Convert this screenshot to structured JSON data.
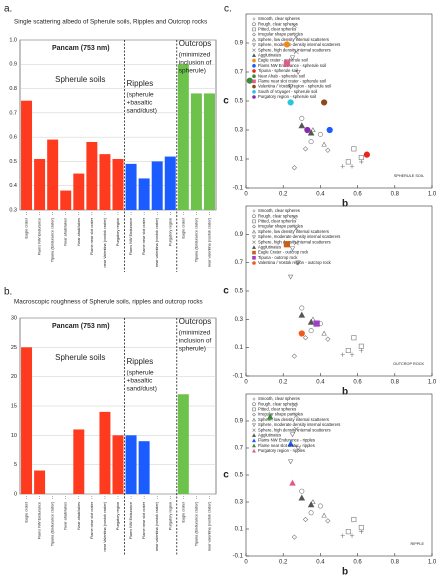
{
  "panel_labels": [
    "a.",
    "b.",
    "c."
  ],
  "chart_data": [
    {
      "type": "grouped-bar",
      "title": "Single scattering albedo of Spherule soils, Ripples and Outcrop rocks",
      "subtitle": "Pancam (753 nm)",
      "ylim": [
        0.3,
        1
      ],
      "yticks": [
        0.3,
        0.4,
        0.5,
        0.6,
        0.7,
        0.8,
        0.9,
        {
          "value": 1,
          "label": "1.0"
        }
      ],
      "grid": true,
      "groups": [
        {
          "name": [
            "Spherule soils"
          ],
          "color": "#ff3b1f",
          "categories": [
            "Eagle crater",
            "Flams NW Endurance",
            "Tipuna (Endurance crater)",
            "Near ahab/lakes",
            "Near ahab/lakes",
            "Flame near slot crater",
            "near Valentina (vostok crater)",
            "Purgatory region"
          ],
          "values": [
            0.75,
            0.51,
            0.59,
            0.38,
            0.45,
            0.58,
            0.53,
            0.51
          ]
        },
        {
          "name": [
            "Ripples",
            "(spherule",
            "+basaltic",
            "sand/dust)"
          ],
          "color": "#1a5cff",
          "categories": [
            "Flams NW Endurance",
            "Flame near slot crater",
            "near valentina (vostok crater)",
            "Purgatory region"
          ],
          "values": [
            0.49,
            0.43,
            0.5,
            0.52
          ]
        },
        {
          "name": [
            "Outcrops",
            "(minimized",
            "inclusion of",
            "spherule)"
          ],
          "color": "#6cc24a",
          "categories": [
            "Eagle crater",
            "Tipuna (Endurance crater)",
            "near valentina (vostok crater)"
          ],
          "values": [
            0.9,
            0.78,
            0.78
          ]
        }
      ]
    },
    {
      "type": "grouped-bar",
      "title": "Macroscopic roughness of Spherule soils, ripples and outcrop rocks",
      "subtitle": "Pancam (753 nm)",
      "ylim": [
        0,
        30
      ],
      "yticks": [
        0,
        5,
        10,
        15,
        20,
        25,
        30
      ],
      "grid": true,
      "groups": [
        {
          "name": [
            "Spherule soils"
          ],
          "color": "#ff3b1f",
          "categories": [
            "Eagle crater",
            "Flams NW Endurance",
            "Tipuna (Endurance crater)",
            "Near ahab/lakes",
            "Near ahab/lakes",
            "Flame near slot crater",
            "near Valentina (vostok crater)",
            "Purgatory region"
          ],
          "values": [
            25,
            4,
            null,
            null,
            11,
            null,
            14,
            10
          ]
        },
        {
          "name": [
            "Ripples",
            "(spherule",
            "+basaltic",
            "sand/dust)"
          ],
          "color": "#1a5cff",
          "categories": [
            "Flams NW Endurance",
            "Flame near slot crater",
            "near valentina (vostok crater)",
            "Purgatory region"
          ],
          "values": [
            10,
            9,
            null,
            null
          ]
        },
        {
          "name": [
            "Outcrops",
            "(minimized",
            "inclusion of",
            "spherule)"
          ],
          "color": "#6cc24a",
          "categories": [
            "Eagle crater",
            "Tipuna (Endurance crater)",
            "near valentina (vostok crater)"
          ],
          "values": [
            17,
            null,
            null
          ]
        }
      ]
    },
    {
      "type": "scatter",
      "x_label": "b",
      "y_label": "c",
      "annotation": "SPHERULE SOIL",
      "xlim": [
        0,
        1
      ],
      "ylim": [
        -0.1,
        1.1
      ],
      "xticks": [
        0,
        0.2,
        0.4,
        0.6,
        0.8,
        {
          "value": 1,
          "label": "1.0"
        }
      ],
      "yticks": [
        -0.1,
        0.1,
        0.3,
        0.5,
        0.7,
        0.9
      ],
      "series": [
        {
          "name": "Smooth, clear spheres",
          "color": "#777777",
          "marker": "plus",
          "x": [
            0.52,
            0.57,
            0.62
          ],
          "y": [
            0.05,
            0.05,
            0.08
          ]
        },
        {
          "name": "Rough, clear spheres",
          "color": "#777777",
          "marker": "circle",
          "x": [
            0.3,
            0.35,
            0.4
          ],
          "y": [
            0.38,
            0.22,
            0.27
          ]
        },
        {
          "name": "Pitted, clear spheres",
          "color": "#777777",
          "marker": "square",
          "x": [
            0.55,
            0.58,
            0.62
          ],
          "y": [
            0.08,
            0.17,
            0.11
          ]
        },
        {
          "name": "Irregular shape particles",
          "color": "#777777",
          "marker": "diamond",
          "x": [
            0.26,
            0.32,
            0.44
          ],
          "y": [
            0.04,
            0.17,
            0.16
          ]
        },
        {
          "name": "Sphere, low density internal scatterers",
          "color": "#777777",
          "marker": "triangle",
          "x": [
            0.36,
            0.42
          ],
          "y": [
            0.3,
            0.2
          ]
        },
        {
          "name": "Sphere, moderate density internal scatterers",
          "color": "#777777",
          "marker": "triangle-down",
          "x": [
            0.24,
            0.25,
            0.28
          ],
          "y": [
            0.6,
            0.8,
            0.7
          ]
        },
        {
          "name": "Sphere, high density internal scatterers",
          "color": "#777777",
          "marker": "x",
          "x": [
            0.26,
            0.27,
            0.27
          ],
          "y": [
            1.02,
            0.94,
            0.84
          ]
        },
        {
          "name": "Agglutinates",
          "color": "#555555",
          "marker": "triangle",
          "filled": true,
          "x": [
            0.3,
            0.35
          ],
          "y": [
            0.33,
            0.28
          ]
        },
        {
          "name": "Eagle crater - spherule soil",
          "color": "#f08a1c",
          "marker": "circle",
          "filled": true,
          "x": [
            0.22
          ],
          "y": [
            0.89
          ]
        },
        {
          "name": "Flams NW Endurance - spherule soil",
          "color": "#1a5cff",
          "marker": "circle",
          "filled": true,
          "x": [
            0.45
          ],
          "y": [
            0.3
          ]
        },
        {
          "name": "Tipuna - spherule soil",
          "color": "#e8261c",
          "marker": "circle",
          "filled": true,
          "x": [
            0.65
          ],
          "y": [
            0.13
          ]
        },
        {
          "name": "Near Ahab - spherule soil",
          "color": "#3a8a3a",
          "marker": "circle",
          "filled": true,
          "x": [
            0.02
          ],
          "y": [
            0.64
          ]
        },
        {
          "name": "Flame near slot crater - spherule soil",
          "color": "#e05a8a",
          "marker": "square",
          "filled": true,
          "x": [
            0.22
          ],
          "y": [
            0.76
          ]
        },
        {
          "name": "Valentina / Vostok region - spherule soil",
          "color": "#8a4a1a",
          "marker": "circle",
          "filled": true,
          "x": [
            0.42
          ],
          "y": [
            0.49
          ]
        },
        {
          "name": "South of Voyager - spherule soil",
          "color": "#29c4e0",
          "marker": "circle",
          "filled": true,
          "x": [
            0.24
          ],
          "y": [
            0.49
          ]
        },
        {
          "name": "Purgatory region - spherule soil",
          "color": "#8a2ab0",
          "marker": "circle",
          "filled": true,
          "x": [
            0.33
          ],
          "y": [
            0.3
          ]
        }
      ]
    },
    {
      "type": "scatter",
      "x_label": "b",
      "y_label": "c",
      "annotation": "OUTCROP ROCK",
      "xlim": [
        0,
        1
      ],
      "ylim": [
        -0.1,
        1.1
      ],
      "xticks": [
        0,
        0.2,
        0.4,
        0.6,
        0.8,
        {
          "value": 1,
          "label": "1.0"
        }
      ],
      "yticks": [
        -0.1,
        0.1,
        0.3,
        0.5,
        0.7,
        0.9
      ],
      "series": [
        {
          "name": "Smooth, clear spheres",
          "color": "#777777",
          "marker": "plus",
          "x": [
            0.52,
            0.57,
            0.62
          ],
          "y": [
            0.05,
            0.05,
            0.08
          ]
        },
        {
          "name": "Rough, clear spheres",
          "color": "#777777",
          "marker": "circle",
          "x": [
            0.3,
            0.35,
            0.4
          ],
          "y": [
            0.38,
            0.22,
            0.27
          ]
        },
        {
          "name": "Pitted, clear spheres",
          "color": "#777777",
          "marker": "square",
          "x": [
            0.55,
            0.58,
            0.62
          ],
          "y": [
            0.08,
            0.17,
            0.11
          ]
        },
        {
          "name": "Irregular shape particles",
          "color": "#777777",
          "marker": "diamond",
          "x": [
            0.26,
            0.32,
            0.44
          ],
          "y": [
            0.04,
            0.17,
            0.16
          ]
        },
        {
          "name": "Sphere, low density internal scatterers",
          "color": "#777777",
          "marker": "triangle",
          "x": [
            0.36,
            0.42
          ],
          "y": [
            0.3,
            0.2
          ]
        },
        {
          "name": "Sphere, moderate density internal scatterers",
          "color": "#777777",
          "marker": "triangle-down",
          "x": [
            0.24,
            0.25,
            0.28
          ],
          "y": [
            0.6,
            0.8,
            0.7
          ]
        },
        {
          "name": "Sphere, high density internal scatterers",
          "color": "#777777",
          "marker": "x",
          "x": [
            0.26,
            0.27,
            0.27
          ],
          "y": [
            1.02,
            0.94,
            0.84
          ]
        },
        {
          "name": "Agglutinates",
          "color": "#555555",
          "marker": "triangle",
          "filled": true,
          "x": [
            0.3,
            0.35
          ],
          "y": [
            0.33,
            0.28
          ]
        },
        {
          "name": "Eagle Crater - outcrop rock",
          "color": "#c8601a",
          "marker": "square",
          "filled": true,
          "x": [
            0.22
          ],
          "y": [
            0.83
          ]
        },
        {
          "name": "Tipuna - outcrop rock",
          "color": "#a040c0",
          "marker": "square",
          "filled": true,
          "x": [
            0.38
          ],
          "y": [
            0.27
          ]
        },
        {
          "name": "Valentina / Vostok region - outcrop rock",
          "color": "#f05a1c",
          "marker": "circle",
          "filled": true,
          "x": [
            0.3
          ],
          "y": [
            0.2
          ]
        }
      ]
    },
    {
      "type": "scatter",
      "x_label": "b",
      "y_label": "c",
      "annotation": "RIPPLE",
      "xlim": [
        0,
        1
      ],
      "ylim": [
        -0.1,
        1.1
      ],
      "xticks": [
        0,
        0.2,
        0.4,
        0.6,
        0.8,
        {
          "value": 1,
          "label": "1.0"
        }
      ],
      "yticks": [
        -0.1,
        0.1,
        0.3,
        0.5,
        0.7,
        0.9
      ],
      "series": [
        {
          "name": "Smooth, clear spheres",
          "color": "#777777",
          "marker": "plus",
          "x": [
            0.52,
            0.57,
            0.62
          ],
          "y": [
            0.05,
            0.05,
            0.08
          ]
        },
        {
          "name": "Rough, clear spheres",
          "color": "#777777",
          "marker": "circle",
          "x": [
            0.3,
            0.35,
            0.4
          ],
          "y": [
            0.38,
            0.22,
            0.27
          ]
        },
        {
          "name": "Pitted, clear spheres",
          "color": "#777777",
          "marker": "square",
          "x": [
            0.55,
            0.58,
            0.62
          ],
          "y": [
            0.08,
            0.17,
            0.11
          ]
        },
        {
          "name": "Irregular shape particles",
          "color": "#777777",
          "marker": "diamond",
          "x": [
            0.26,
            0.32,
            0.44
          ],
          "y": [
            0.04,
            0.17,
            0.16
          ]
        },
        {
          "name": "Sphere, low density internal scatterers",
          "color": "#777777",
          "marker": "triangle",
          "x": [
            0.36,
            0.42
          ],
          "y": [
            0.3,
            0.2
          ]
        },
        {
          "name": "Sphere, moderate density internal scatterers",
          "color": "#777777",
          "marker": "triangle-down",
          "x": [
            0.24,
            0.25,
            0.28
          ],
          "y": [
            0.6,
            0.8,
            0.7
          ]
        },
        {
          "name": "Sphere, high density internal scatterers",
          "color": "#777777",
          "marker": "x",
          "x": [
            0.26,
            0.27,
            0.27
          ],
          "y": [
            1.02,
            0.94,
            0.84
          ]
        },
        {
          "name": "Agglutinates",
          "color": "#555555",
          "marker": "triangle",
          "filled": true,
          "x": [
            0.3,
            0.35
          ],
          "y": [
            0.33,
            0.28
          ]
        },
        {
          "name": "Flams NW Endurance - ripples",
          "color": "#1a5cff",
          "marker": "triangle",
          "filled": true,
          "x": [
            0.24
          ],
          "y": [
            0.73
          ]
        },
        {
          "name": "Flame near slot crater - ripples",
          "color": "#3a8a3a",
          "marker": "triangle",
          "filled": true,
          "x": [
            0.13
          ],
          "y": [
            0.93
          ]
        },
        {
          "name": "Purgatory region - ripples",
          "color": "#e05a8a",
          "marker": "triangle",
          "filled": true,
          "x": [
            0.25
          ],
          "y": [
            0.44
          ]
        }
      ]
    }
  ]
}
